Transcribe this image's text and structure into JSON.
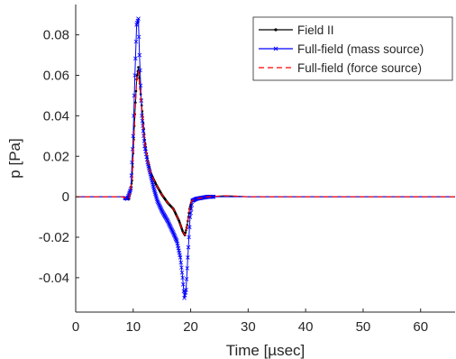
{
  "chart_data": {
    "type": "line",
    "xlabel": "Time [µsec]",
    "ylabel": "p [Pa]",
    "xlim": [
      0,
      66
    ],
    "ylim": [
      -0.057,
      0.095
    ],
    "xticks": [
      0,
      10,
      20,
      30,
      40,
      50,
      60
    ],
    "yticks": [
      -0.04,
      -0.02,
      0,
      0.02,
      0.04,
      0.06,
      0.08
    ],
    "ytick_labels": [
      "-0.04",
      "-0.02",
      "0",
      "0.02",
      "0.04",
      "0.06",
      "0.08"
    ],
    "grid": false,
    "legend_position": "top-right",
    "series": [
      {
        "name": "Field II",
        "color": "#000000",
        "line_style": "solid",
        "marker": "dot",
        "x": [
          0,
          8,
          9.3,
          9.8,
          10.2,
          10.6,
          10.9,
          11.4,
          12,
          12.5,
          13,
          14,
          15,
          16,
          17,
          18,
          18.6,
          19,
          19.4,
          19.8,
          20.2,
          21,
          23,
          26,
          30,
          66
        ],
        "y": [
          0,
          0,
          -0.001,
          0.008,
          0.035,
          0.058,
          0.064,
          0.048,
          0.028,
          0.018,
          0.012,
          0.006,
          0.001,
          -0.003,
          -0.006,
          -0.012,
          -0.017,
          -0.019,
          -0.014,
          -0.006,
          -0.002,
          -0.001,
          0,
          0.0005,
          0,
          0
        ]
      },
      {
        "name": "Full-field (mass source)",
        "color": "#0000ff",
        "line_style": "solid",
        "marker": "x",
        "x": [
          0,
          8,
          9,
          9.6,
          10,
          10.3,
          10.6,
          10.9,
          11.1,
          11.5,
          12,
          12.5,
          13,
          13.6,
          14.2,
          15,
          16,
          17,
          17.6,
          18.2,
          18.6,
          18.9,
          19.2,
          19.5,
          19.9,
          20.3,
          21,
          23,
          26,
          66
        ],
        "y": [
          0,
          0,
          -0.001,
          0.004,
          0.03,
          0.06,
          0.085,
          0.088,
          0.07,
          0.04,
          0.025,
          0.017,
          0.011,
          0.004,
          -0.002,
          -0.007,
          -0.012,
          -0.018,
          -0.022,
          -0.03,
          -0.04,
          -0.05,
          -0.046,
          -0.03,
          -0.01,
          -0.002,
          -0.001,
          0,
          0,
          0
        ]
      },
      {
        "name": "Full-field (force source)",
        "color": "#ff0000",
        "line_style": "dashed",
        "marker": "none",
        "x": [
          0,
          8,
          9.3,
          9.8,
          10.2,
          10.6,
          10.9,
          11.4,
          12,
          12.5,
          13,
          14,
          15,
          16,
          17,
          18,
          18.6,
          19,
          19.4,
          19.8,
          20.2,
          21,
          23,
          26,
          30,
          66
        ],
        "y": [
          0,
          0,
          -0.001,
          0.008,
          0.034,
          0.057,
          0.062,
          0.047,
          0.027,
          0.018,
          0.012,
          0.006,
          0.001,
          -0.003,
          -0.006,
          -0.012,
          -0.017,
          -0.019,
          -0.014,
          -0.006,
          -0.002,
          -0.001,
          0,
          0.0005,
          0,
          0
        ]
      }
    ]
  }
}
